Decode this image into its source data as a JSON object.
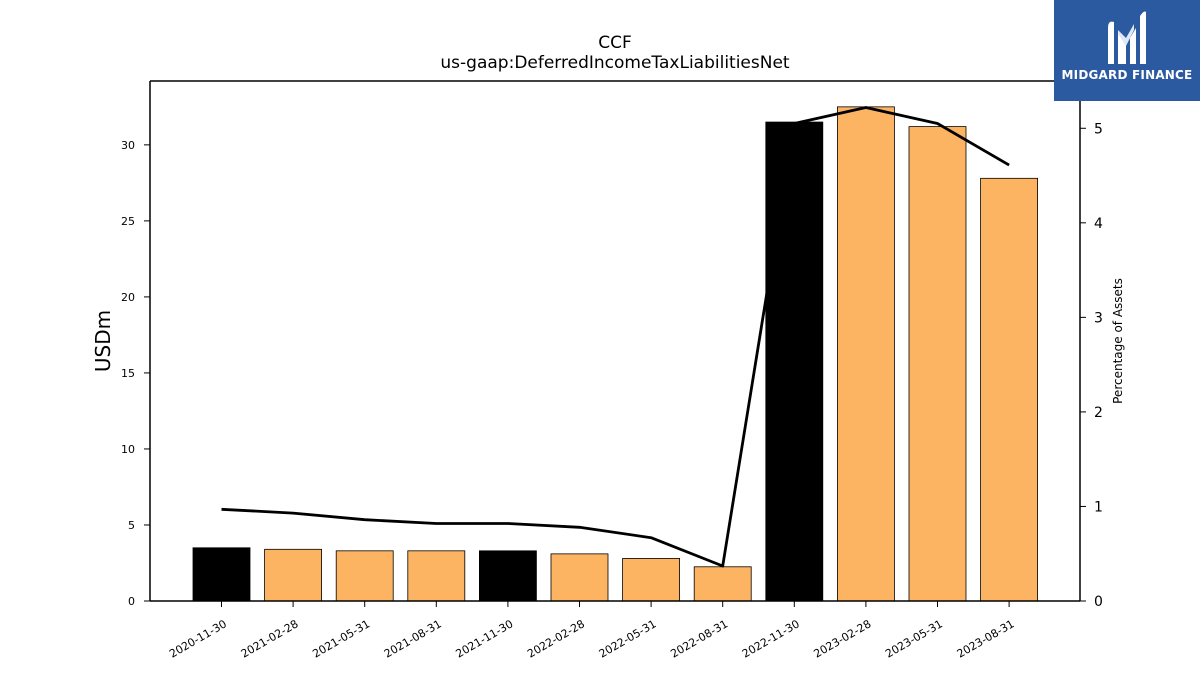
{
  "logo": {
    "text": "MIDGARD FINANCE",
    "icon": "midgard-m-icon",
    "background": "#2c5aa0"
  },
  "chart_data": {
    "type": "bar",
    "title": "CCF",
    "subtitle": "us-gaap:DeferredIncomeTaxLiabilitiesNet",
    "ylabel": "USDm",
    "y2label": "Percentage of Assets",
    "ylim": [
      0,
      34.2
    ],
    "y2lim": [
      0,
      5.5
    ],
    "yticks": [
      0,
      5,
      10,
      15,
      20,
      25,
      30
    ],
    "y2ticks": [
      0,
      1,
      2,
      3,
      4,
      5
    ],
    "categories": [
      "2020-11-30",
      "2021-02-28",
      "2021-05-31",
      "2021-08-31",
      "2021-11-30",
      "2022-02-28",
      "2022-05-31",
      "2022-08-31",
      "2022-11-30",
      "2023-02-28",
      "2023-05-31",
      "2023-08-31"
    ],
    "series": [
      {
        "type": "bar",
        "axis": "left",
        "values": [
          3.5,
          3.4,
          3.3,
          3.3,
          3.3,
          3.1,
          2.8,
          2.25,
          31.5,
          32.5,
          31.2,
          27.8
        ],
        "colors": [
          "#000000",
          "#fdb462",
          "#fdb462",
          "#fdb462",
          "#000000",
          "#fdb462",
          "#fdb462",
          "#fdb462",
          "#000000",
          "#fdb462",
          "#fdb462",
          "#fdb462"
        ]
      },
      {
        "type": "line",
        "axis": "right",
        "color": "#000000",
        "values": [
          0.97,
          0.93,
          0.86,
          0.82,
          0.82,
          0.78,
          0.67,
          0.37,
          5.05,
          5.22,
          5.05,
          4.61
        ]
      }
    ],
    "grid": false
  }
}
